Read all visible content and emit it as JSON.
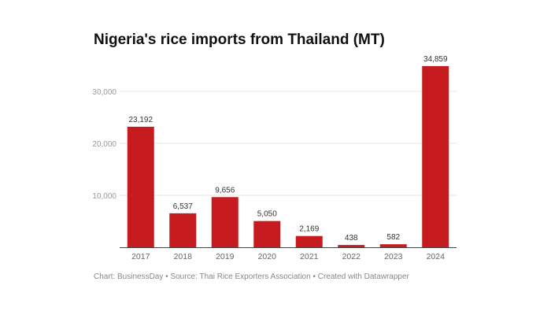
{
  "chart_data": {
    "type": "bar",
    "title": "Nigeria's rice imports from Thailand (MT)",
    "categories": [
      "2017",
      "2018",
      "2019",
      "2020",
      "2021",
      "2022",
      "2023",
      "2024"
    ],
    "values": [
      23192,
      6537,
      9656,
      5050,
      2169,
      438,
      582,
      34859
    ],
    "value_labels": [
      "23,192",
      "6,537",
      "9,656",
      "5,050",
      "2,169",
      "438",
      "582",
      "34,859"
    ],
    "yticks": [
      10000,
      20000,
      30000
    ],
    "ytick_labels": [
      "10,000",
      "20,000",
      "30,000"
    ],
    "ylim": [
      0,
      30000
    ],
    "grid": true,
    "xlabel": "",
    "ylabel": "",
    "bar_color": "#c71c1f"
  },
  "footer": "Chart: BusinessDay • Source: Thai Rice Exporters Association  • Created with Datawrapper"
}
